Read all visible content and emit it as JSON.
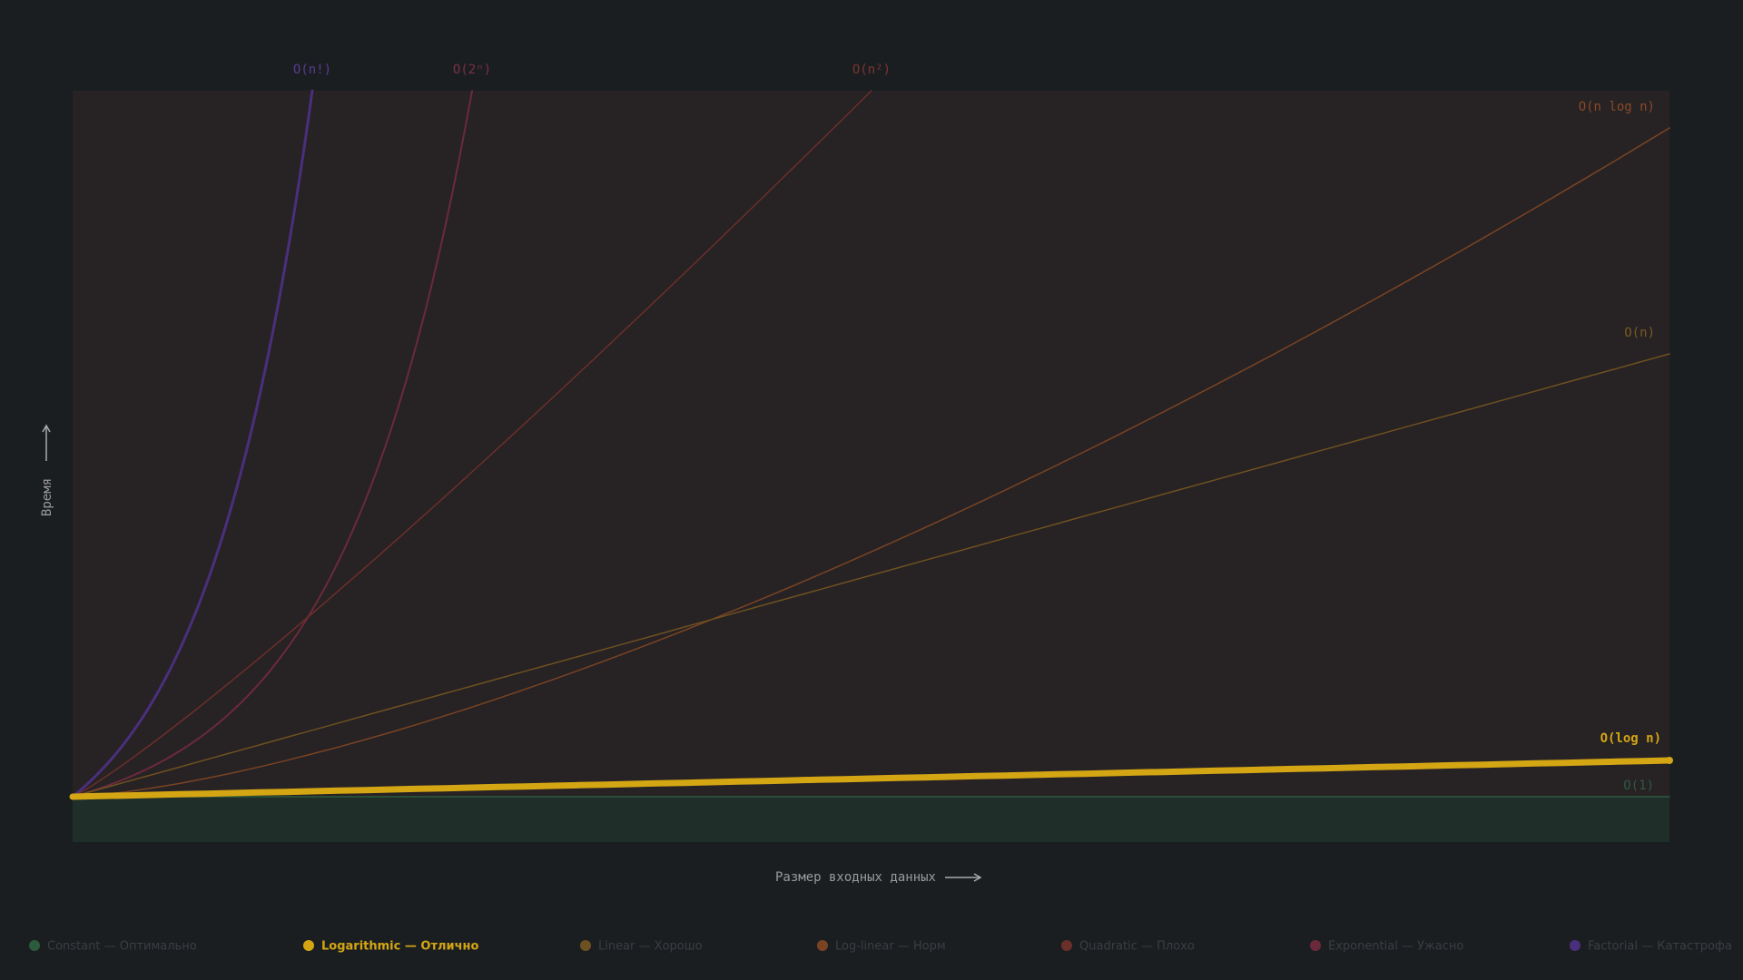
{
  "curves": [
    {
      "label": "O(1)"
    },
    {
      "label": "O(log n)"
    },
    {
      "label": "O(n)"
    },
    {
      "label": "O(n log n)"
    },
    {
      "label": "O(n²)"
    },
    {
      "label": "O(2ⁿ)"
    },
    {
      "label": "O(n!)"
    }
  ],
  "axis": {
    "y": "Время",
    "x": "Размер входных данных"
  },
  "legend": [
    "Constant — Оптимально",
    "Logarithmic — Отлично",
    "Linear — Хорошо",
    "Log-linear — Норм",
    "Quadratic — Плохо",
    "Exponential — Ужасно",
    "Factorial — Катастрофа"
  ]
}
